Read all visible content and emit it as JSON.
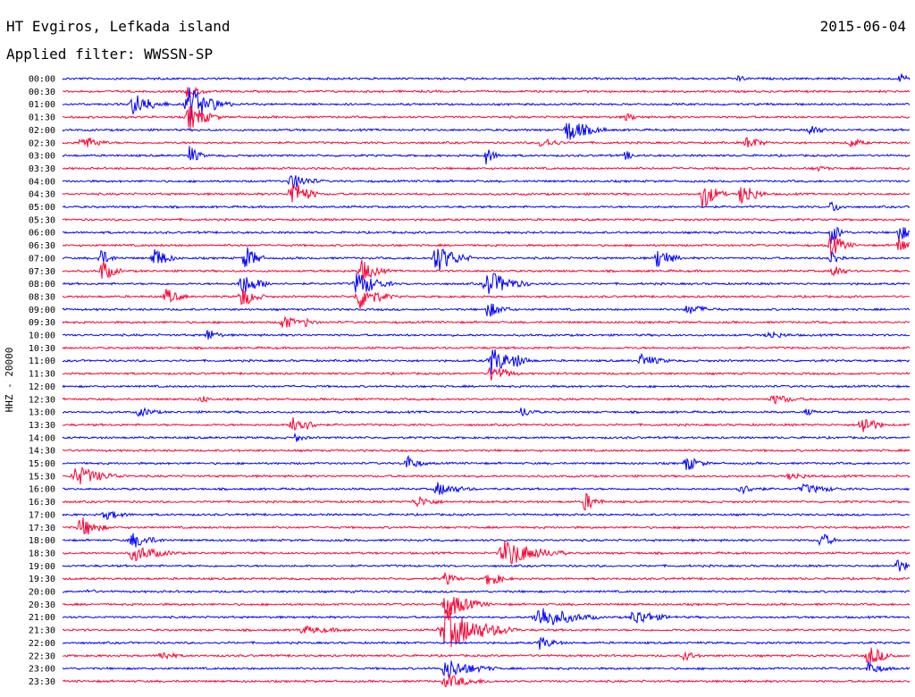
{
  "header": {
    "station": "HT Evgiros, Lefkada island",
    "date": "2015-06-04",
    "filter": "Applied filter: WWSSN-SP"
  },
  "chart_data": {
    "type": "line",
    "title": "HT Evgiros, Lefkada island",
    "ylabel": "HHZ - 20000",
    "row_interval_minutes": 30,
    "series_colors": [
      "#0000ff",
      "#ff0033"
    ],
    "tick_labels": [
      "00:00",
      "00:30",
      "01:00",
      "01:30",
      "02:00",
      "02:30",
      "03:00",
      "03:30",
      "04:00",
      "04:30",
      "05:00",
      "05:30",
      "06:00",
      "06:30",
      "07:00",
      "07:30",
      "08:00",
      "08:30",
      "09:00",
      "09:30",
      "10:00",
      "10:30",
      "11:00",
      "11:30",
      "12:00",
      "12:30",
      "13:00",
      "13:30",
      "14:00",
      "14:30",
      "15:00",
      "15:30",
      "16:00",
      "16:30",
      "17:00",
      "17:30",
      "18:00",
      "18:30",
      "19:00",
      "19:30",
      "20:00",
      "20:30",
      "21:00",
      "21:30",
      "22:00",
      "22:30",
      "23:00",
      "23:30"
    ]
  }
}
